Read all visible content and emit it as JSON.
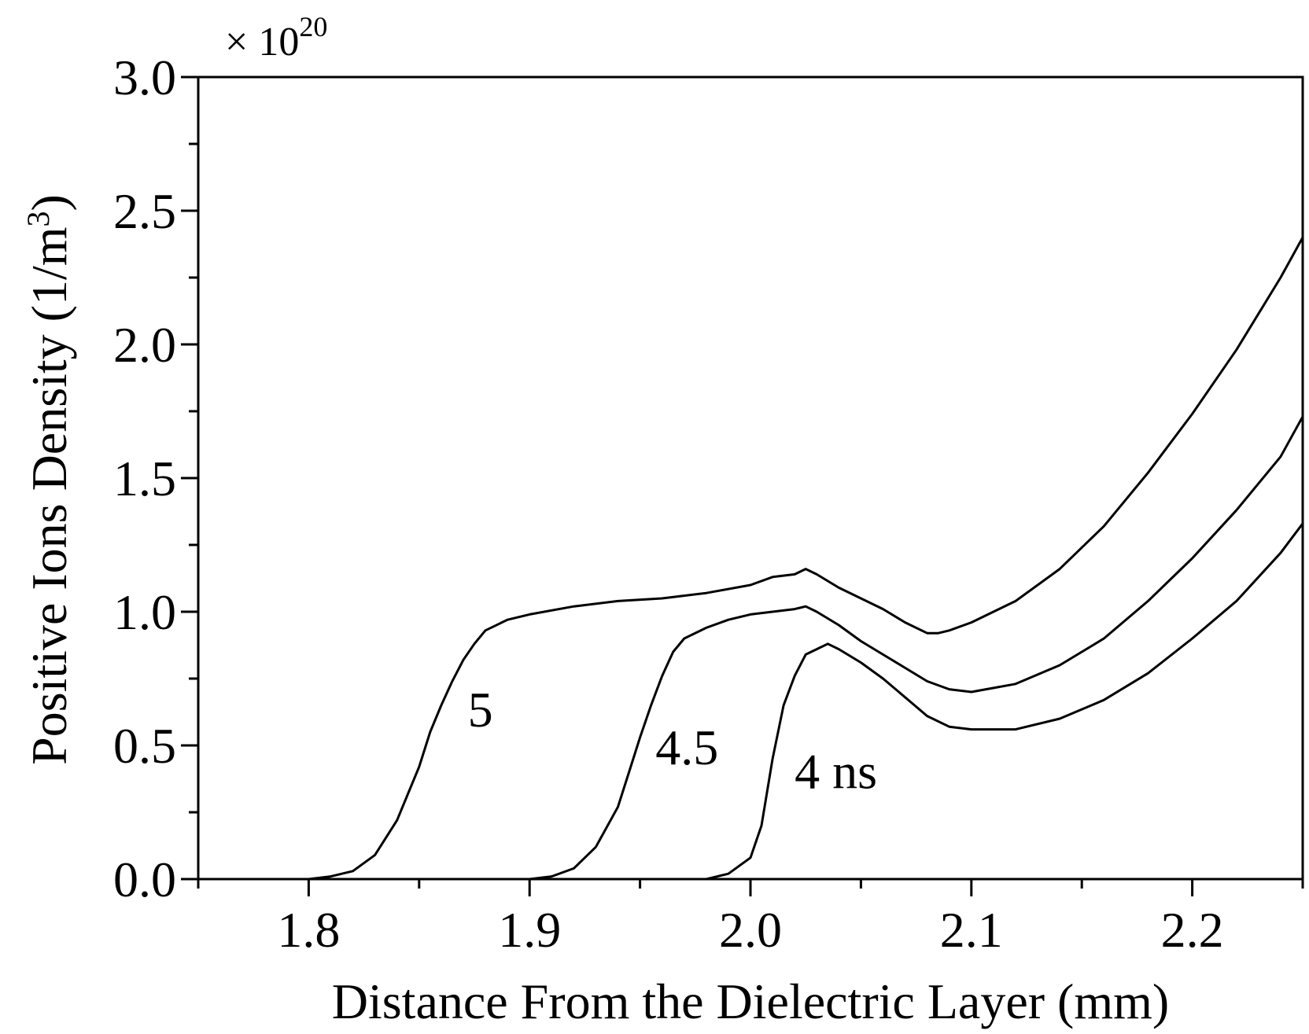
{
  "chart_data": {
    "type": "line",
    "xlabel": "Distance From the Dielectric Layer (mm)",
    "ylabel_main": "Positive Ions Density (1/m",
    "ylabel_sup": "3",
    "ylabel_close": ")",
    "exponent_prefix": "×  10",
    "exponent_power": "20",
    "xlim": [
      1.75,
      2.25
    ],
    "ylim": [
      0.0,
      3.0
    ],
    "xticks": [
      1.8,
      1.9,
      2.0,
      2.1,
      2.2
    ],
    "xtick_labels": [
      "1.8",
      "1.9",
      "2.0",
      "2.1",
      "2.2"
    ],
    "xminor": [
      1.75,
      1.85,
      1.95,
      2.05,
      2.15,
      2.25
    ],
    "yticks": [
      0.0,
      0.5,
      1.0,
      1.5,
      2.0,
      2.5,
      3.0
    ],
    "ytick_labels": [
      "0.0",
      "0.5",
      "1.0",
      "1.5",
      "2.0",
      "2.5",
      "3.0"
    ],
    "yminor": [
      0.25,
      0.75,
      1.25,
      1.75,
      2.25,
      2.75
    ],
    "series": [
      {
        "name": "5",
        "x": [
          1.75,
          1.8,
          1.81,
          1.82,
          1.83,
          1.84,
          1.85,
          1.855,
          1.86,
          1.865,
          1.87,
          1.875,
          1.88,
          1.89,
          1.9,
          1.92,
          1.94,
          1.96,
          1.98,
          2.0,
          2.01,
          2.02,
          2.025,
          2.03,
          2.04,
          2.05,
          2.06,
          2.07,
          2.08,
          2.085,
          2.09,
          2.1,
          2.12,
          2.14,
          2.16,
          2.18,
          2.2,
          2.22,
          2.24,
          2.25
        ],
        "y": [
          0.0,
          0.0,
          0.01,
          0.03,
          0.09,
          0.22,
          0.42,
          0.55,
          0.65,
          0.74,
          0.82,
          0.88,
          0.93,
          0.97,
          0.99,
          1.02,
          1.04,
          1.05,
          1.07,
          1.1,
          1.13,
          1.14,
          1.16,
          1.14,
          1.09,
          1.05,
          1.01,
          0.96,
          0.92,
          0.92,
          0.93,
          0.96,
          1.04,
          1.16,
          1.32,
          1.52,
          1.74,
          1.98,
          2.25,
          2.4
        ]
      },
      {
        "name": "4.5",
        "x": [
          1.75,
          1.9,
          1.91,
          1.92,
          1.93,
          1.94,
          1.945,
          1.95,
          1.955,
          1.96,
          1.965,
          1.97,
          1.98,
          1.99,
          2.0,
          2.01,
          2.02,
          2.025,
          2.03,
          2.04,
          2.05,
          2.06,
          2.07,
          2.08,
          2.09,
          2.1,
          2.12,
          2.14,
          2.16,
          2.18,
          2.2,
          2.22,
          2.24,
          2.25
        ],
        "y": [
          0.0,
          0.0,
          0.01,
          0.04,
          0.12,
          0.27,
          0.4,
          0.53,
          0.65,
          0.76,
          0.85,
          0.9,
          0.94,
          0.97,
          0.99,
          1.0,
          1.01,
          1.02,
          1.0,
          0.95,
          0.89,
          0.84,
          0.79,
          0.74,
          0.71,
          0.7,
          0.73,
          0.8,
          0.9,
          1.04,
          1.2,
          1.38,
          1.58,
          1.73
        ]
      },
      {
        "name": "4 ns",
        "x": [
          1.75,
          1.98,
          1.99,
          2.0,
          2.005,
          2.01,
          2.015,
          2.02,
          2.025,
          2.03,
          2.035,
          2.04,
          2.05,
          2.06,
          2.07,
          2.08,
          2.09,
          2.1,
          2.12,
          2.14,
          2.16,
          2.18,
          2.2,
          2.22,
          2.24,
          2.25
        ],
        "y": [
          0.0,
          0.0,
          0.02,
          0.08,
          0.2,
          0.45,
          0.65,
          0.76,
          0.84,
          0.86,
          0.88,
          0.86,
          0.81,
          0.75,
          0.68,
          0.61,
          0.57,
          0.56,
          0.56,
          0.6,
          0.67,
          0.77,
          0.9,
          1.04,
          1.22,
          1.33
        ]
      }
    ]
  }
}
